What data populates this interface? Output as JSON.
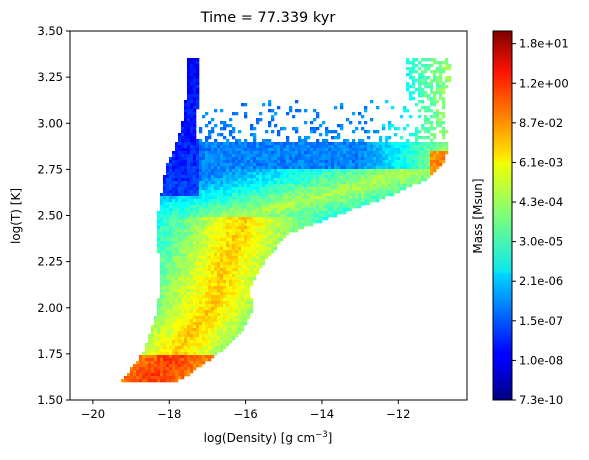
{
  "chart_data": {
    "type": "heatmap",
    "title": "Time = 77.339 kyr",
    "xlabel": "log(Density) [g cm",
    "xlabel_sup": "−3",
    "xlabel_tail": "]",
    "ylabel": "log(T) [K]",
    "xlim": [
      -20.6,
      -10.2
    ],
    "ylim": [
      1.5,
      3.5
    ],
    "xticks": [
      -20,
      -18,
      -16,
      -14,
      -12
    ],
    "xtick_labels": [
      "−20",
      "−18",
      "−16",
      "−14",
      "−12"
    ],
    "yticks": [
      1.5,
      1.75,
      2.0,
      2.25,
      2.5,
      2.75,
      3.0,
      3.25,
      3.5
    ],
    "ytick_labels": [
      "1.50",
      "1.75",
      "2.00",
      "2.25",
      "2.50",
      "2.75",
      "3.00",
      "3.25",
      "3.50"
    ],
    "grid": false,
    "colormap": "jet",
    "colorbar": {
      "label": "Mass [Msun]",
      "tick_labels": [
        "7.3e-10",
        "1.0e-08",
        "1.5e-07",
        "2.1e-06",
        "3.0e-05",
        "4.3e-04",
        "6.1e-03",
        "8.7e-02",
        "1.2e+00",
        "1.8e+01"
      ]
    },
    "regions": [
      {
        "description": "cold dense tail",
        "x": [
          -19.3,
          -17.8
        ],
        "y": [
          1.59,
          1.75
        ],
        "level": 0.82
      },
      {
        "description": "main diagonal band",
        "x": [
          -18.2,
          -15.6
        ],
        "y": [
          1.75,
          2.4
        ],
        "level": 0.6
      },
      {
        "description": "warm plateau",
        "x": [
          -16.0,
          -12.0
        ],
        "y": [
          2.5,
          2.75
        ],
        "level": 0.45
      },
      {
        "description": "hot low-density spike",
        "x": [
          -17.8,
          -17.2
        ],
        "y": [
          2.75,
          3.36
        ],
        "level": 0.1
      },
      {
        "description": "dense hot ridge",
        "x": [
          -12.0,
          -10.7
        ],
        "y": [
          2.75,
          3.27
        ],
        "level": 0.62
      }
    ]
  }
}
